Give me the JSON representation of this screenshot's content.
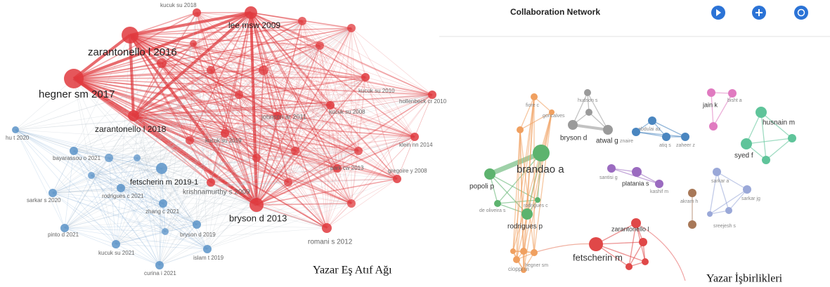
{
  "left": {
    "nodes": [
      "zarantonello l 2016",
      "hegner sm 2017",
      "zarantonello l 2018",
      "lee msw 2009",
      "bryson d 2013",
      "fetscherin m 2019-1",
      "krishnamurthy s 2009",
      "romani s 2012",
      "kucuk su 2018",
      "johnson ar 2011",
      "kucuk su 2008",
      "kucuk su 2019",
      "park cw 2013",
      "zhang c 2021",
      "bryson d 2019",
      "sarkar s 2020",
      "pinto d 2021",
      "kucuk su 2021",
      "curina i 2021",
      "islam t 2019",
      "hu t 2020",
      "rodrigues c 2021",
      "bayarassou o 2021",
      "kucuk su 2010",
      "gregoire y 2008",
      "hollenbeck cr 2010",
      "klein nn 2014"
    ],
    "caption": "Yazar Eş Atıf Ağı"
  },
  "right": {
    "title": "Collaboration Network",
    "nodes": [
      "brandao a",
      "popoli p",
      "rodrigues p",
      "rodrigues c",
      "de oliveira s",
      "bryson d",
      "atwal g",
      "hudson s",
      "fiore c",
      "goncalves",
      "jain k",
      "bisht a",
      "husnain m",
      "syed f",
      "abdulai az",
      "znaire",
      "atiq s",
      "zaheer z",
      "platania s",
      "santisi g",
      "kashif m",
      "sarkar a",
      "sarkar jg",
      "sreejesh s",
      "akram h",
      "fetscherin m",
      "zarantonello l",
      "hegner sm",
      "cioppi m"
    ],
    "caption": "Yazar İşbirlikleri"
  }
}
